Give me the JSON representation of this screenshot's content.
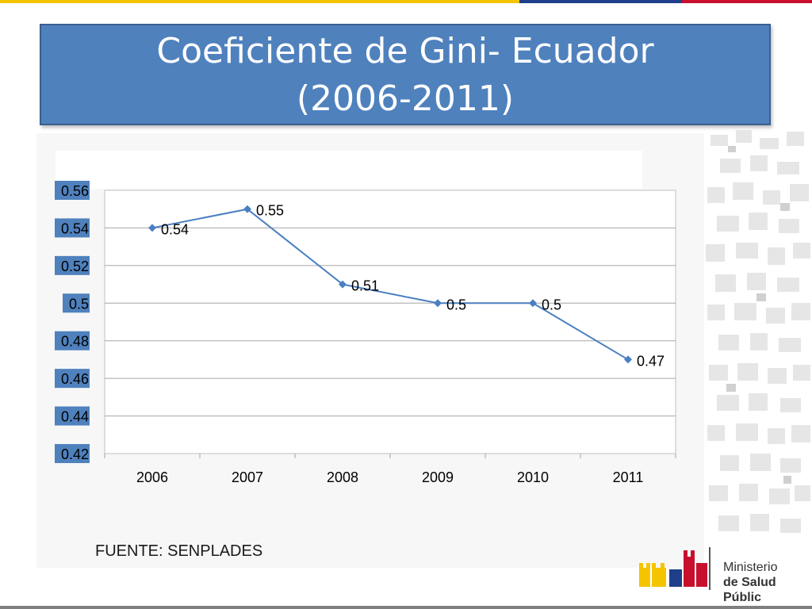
{
  "slide": {
    "title_line1": "Coeficiente de Gini- Ecuador",
    "title_line2": "(2006-2011)",
    "source": "FUENTE: SENPLADES",
    "logo_line1": "Ministerio",
    "logo_line2": "de Salud Públic"
  },
  "colors": {
    "title_bg": "#4f81bd",
    "series_line": "#4a7fc1",
    "tick_highlight": "#4f81bd"
  },
  "chart_data": {
    "type": "line",
    "x": [
      "2006",
      "2007",
      "2008",
      "2009",
      "2010",
      "2011"
    ],
    "series": [
      {
        "values": [
          0.54,
          0.55,
          0.51,
          0.5,
          0.5,
          0.47
        ],
        "labels": [
          "0.54",
          "0.55",
          "0.51",
          "0.5",
          "0.5",
          "0.47"
        ]
      }
    ],
    "y_ticks": [
      "0.42",
      "0.44",
      "0.46",
      "0.48",
      "0.5",
      "0.52",
      "0.54",
      "0.56"
    ],
    "ylim": [
      0.42,
      0.56
    ],
    "grid": true,
    "title": "",
    "xlabel": "",
    "ylabel": ""
  }
}
